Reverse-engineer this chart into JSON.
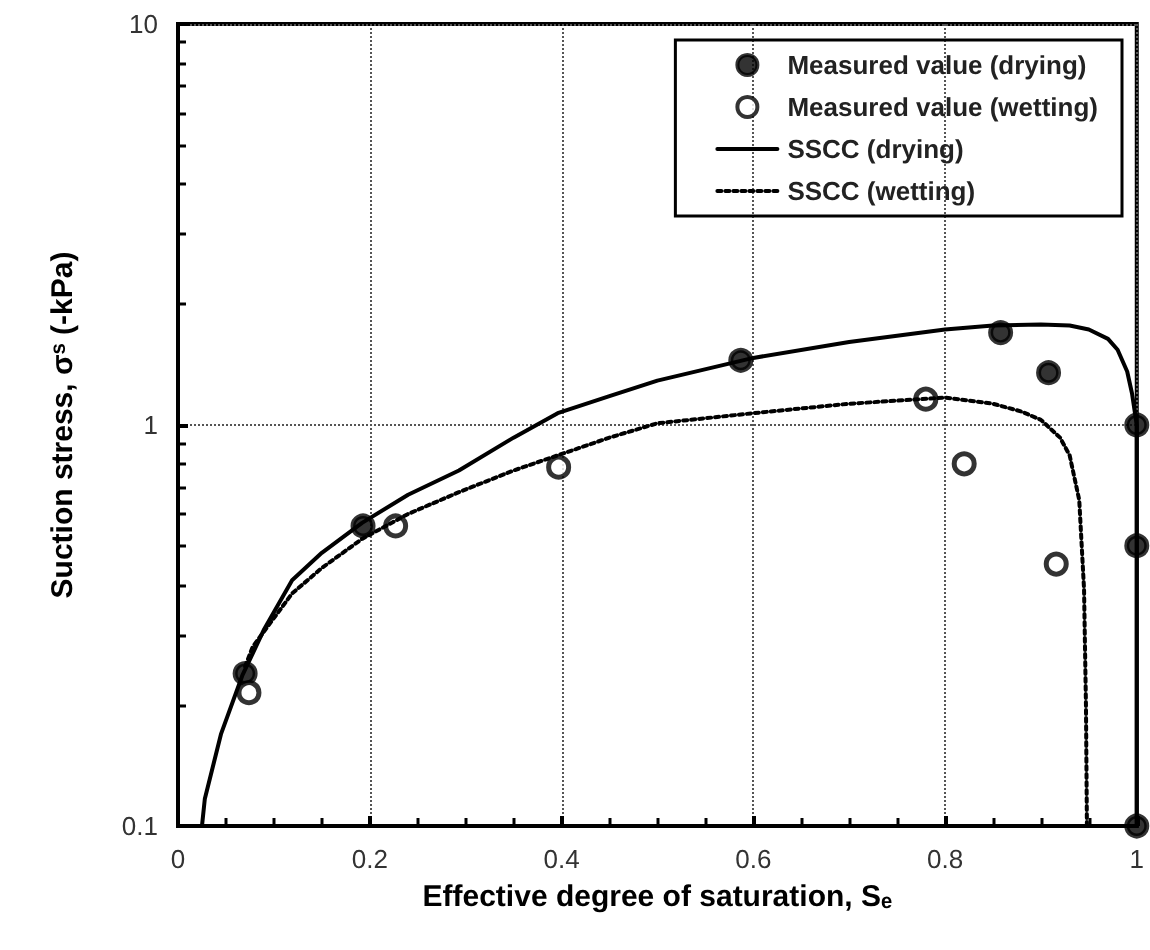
{
  "chart_data": {
    "type": "scatter",
    "xlabel": "Effective degree of saturation, Sₑ",
    "ylabel": "Suction stress, σˢ (-kPa)",
    "xlim": [
      0,
      1
    ],
    "xticks": [
      0,
      0.2,
      0.4,
      0.6,
      0.8,
      1
    ],
    "ylim": [
      0.1,
      10
    ],
    "yticks": [
      0.1,
      1,
      10
    ],
    "log": "y",
    "grid": true,
    "legend": "top right",
    "series": [
      {
        "name": "Measured value (drying)",
        "color": "#000000",
        "marker": "circle",
        "x": [
          0.07,
          0.193,
          0.587,
          0.858,
          0.908,
          1,
          1,
          1
        ],
        "values": [
          0.24,
          0.56,
          1.45,
          1.7,
          1.35,
          1.0,
          0.5,
          0.1
        ]
      },
      {
        "name": "Measured value (wetting)",
        "color": "#ffffff",
        "marker": "circle",
        "x": [
          0.074,
          0.227,
          0.397,
          0.78,
          0.82,
          0.916
        ],
        "values": [
          0.215,
          0.56,
          0.785,
          1.16,
          0.8,
          0.45
        ]
      },
      {
        "name": "SSCC (drying)",
        "type": "line",
        "color": "#000000",
        "marker": "none",
        "line_style": "solid",
        "x": [
          0.025,
          0.028,
          0.045,
          0.067,
          0.09,
          0.119,
          0.15,
          0.192,
          0.24,
          0.293,
          0.35,
          0.396,
          0.45,
          0.5,
          0.6,
          0.7,
          0.8,
          0.85,
          0.9,
          0.93,
          0.95,
          0.97,
          0.98,
          0.99,
          0.995,
          1,
          1
        ],
        "values": [
          0.1,
          0.117,
          0.17,
          0.237,
          0.31,
          0.41,
          0.48,
          0.57,
          0.67,
          0.77,
          0.93,
          1.07,
          1.18,
          1.29,
          1.47,
          1.61,
          1.73,
          1.77,
          1.78,
          1.77,
          1.73,
          1.64,
          1.54,
          1.36,
          1.2,
          1.0,
          0.1
        ]
      },
      {
        "name": "SSCC (wetting)",
        "type": "line",
        "color": "#000000",
        "marker": "none",
        "line_style": "dotted",
        "x": [
          0.07,
          0.078,
          0.1,
          0.119,
          0.15,
          0.192,
          0.24,
          0.293,
          0.35,
          0.396,
          0.45,
          0.5,
          0.6,
          0.7,
          0.8,
          0.85,
          0.88,
          0.9,
          0.92,
          0.93,
          0.94,
          0.945,
          0.947,
          0.948
        ],
        "values": [
          0.25,
          0.28,
          0.33,
          0.38,
          0.44,
          0.52,
          0.6,
          0.68,
          0.77,
          0.84,
          0.93,
          1.01,
          1.07,
          1.13,
          1.17,
          1.13,
          1.08,
          1.03,
          0.93,
          0.84,
          0.65,
          0.39,
          0.2,
          0.1
        ]
      }
    ]
  }
}
